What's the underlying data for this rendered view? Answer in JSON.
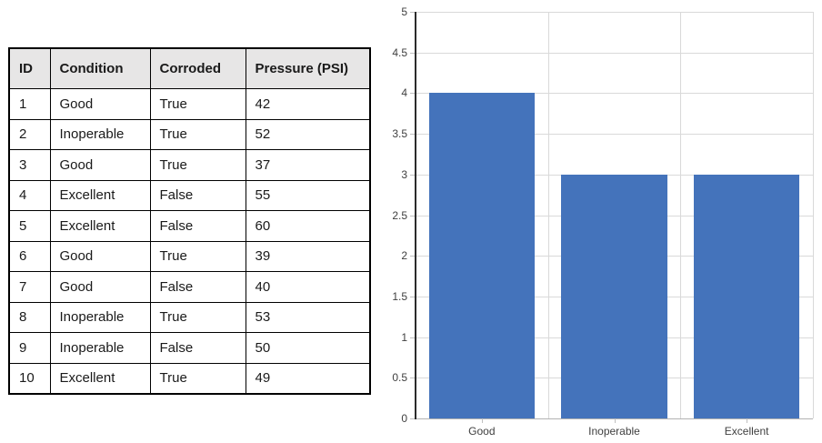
{
  "table": {
    "headers": [
      "ID",
      "Condition",
      "Corroded",
      "Pressure (PSI)"
    ],
    "rows": [
      [
        "1",
        "Good",
        "True",
        "42"
      ],
      [
        "2",
        "Inoperable",
        "True",
        "52"
      ],
      [
        "3",
        "Good",
        "True",
        "37"
      ],
      [
        "4",
        "Excellent",
        "False",
        "55"
      ],
      [
        "5",
        "Excellent",
        "False",
        "60"
      ],
      [
        "6",
        "Good",
        "True",
        "39"
      ],
      [
        "7",
        "Good",
        "False",
        "40"
      ],
      [
        "8",
        "Inoperable",
        "True",
        "53"
      ],
      [
        "9",
        "Inoperable",
        "False",
        "50"
      ],
      [
        "10",
        "Excellent",
        "True",
        "49"
      ]
    ]
  },
  "chart_data": {
    "type": "bar",
    "categories": [
      "Good",
      "Inoperable",
      "Excellent"
    ],
    "values": [
      4,
      3,
      3
    ],
    "title": "",
    "xlabel": "",
    "ylabel": "",
    "ylim": [
      0,
      5
    ],
    "ytick_step": 0.5,
    "yticks": [
      0,
      0.5,
      1,
      1.5,
      2,
      2.5,
      3,
      3.5,
      4,
      4.5,
      5
    ],
    "grid": true,
    "legend": false,
    "bar_color": "#4473bb"
  },
  "colors": {
    "bar": "#4473bb",
    "gridline": "#d9d9d9",
    "y_axis": "#2b2b2b",
    "x_axis": "#b3b3b3",
    "tick": "#bfbfbf",
    "tick_label": "#404040",
    "table_border": "#000000",
    "table_header_bg": "#e7e6e6"
  }
}
